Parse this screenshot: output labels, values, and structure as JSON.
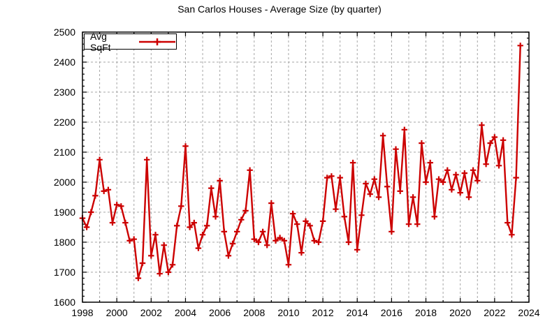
{
  "title": "San Carlos Houses - Average Size (by quarter)",
  "legend": {
    "label": "Avg SqFt"
  },
  "colors": {
    "series": "#cc0000",
    "grid": "#a6a6a6",
    "axis": "#000000",
    "background": "#ffffff",
    "text": "#000000"
  },
  "axes": {
    "x_min": 1998,
    "x_max": 2024,
    "y_min": 1600,
    "y_max": 2500,
    "x_tick_labels": [
      1998,
      2000,
      2002,
      2004,
      2006,
      2008,
      2010,
      2012,
      2014,
      2016,
      2018,
      2020,
      2022,
      2024
    ],
    "y_tick_labels": [
      1600,
      1700,
      1800,
      1900,
      2000,
      2100,
      2200,
      2300,
      2400,
      2500
    ],
    "x_gridline_step_years": 1,
    "y_gridline_step": 100,
    "x_minor_tick_step_years": 1,
    "y_minor_tick_step": 20,
    "grid_dashed": true
  },
  "chart_data": {
    "type": "line",
    "title": "San Carlos Houses - Average Size (by quarter)",
    "series_name": "Avg SqFt",
    "marker": "plus",
    "x_start_year": 1998,
    "x_step_years": 0.25,
    "x_unit": "quarter",
    "ylabel": "Avg SqFt",
    "xlim": [
      1998,
      2024
    ],
    "ylim": [
      1600,
      2500
    ],
    "values": [
      1880,
      1850,
      1900,
      1955,
      2075,
      1970,
      1975,
      1865,
      1925,
      1920,
      1865,
      1805,
      1810,
      1680,
      1730,
      2075,
      1755,
      1825,
      1695,
      1790,
      1700,
      1725,
      1855,
      1920,
      2120,
      1850,
      1865,
      1780,
      1825,
      1855,
      1980,
      1885,
      2005,
      1835,
      1755,
      1795,
      1835,
      1875,
      1905,
      2040,
      1810,
      1800,
      1835,
      1790,
      1930,
      1805,
      1815,
      1805,
      1725,
      1895,
      1860,
      1765,
      1870,
      1855,
      1805,
      1800,
      1870,
      2015,
      2020,
      1910,
      2015,
      1885,
      1800,
      2065,
      1775,
      1890,
      1995,
      1960,
      2010,
      1950,
      2155,
      1985,
      1835,
      2110,
      1970,
      2175,
      1860,
      1950,
      1860,
      2130,
      2000,
      2065,
      1885,
      2010,
      2000,
      2040,
      1975,
      2025,
      1965,
      2030,
      1950,
      2040,
      2005,
      2190,
      2060,
      2130,
      2150,
      2055,
      2140,
      1865,
      1825,
      2015,
      2455
    ]
  }
}
